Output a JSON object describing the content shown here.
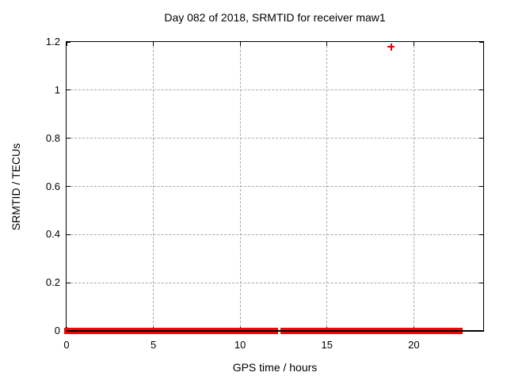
{
  "chart_data": {
    "type": "scatter",
    "title": "Day 082 of 2018, SRMTID for receiver maw1",
    "xlabel": "GPS time / hours",
    "ylabel": "SRMTID / TECUs",
    "xlim": [
      0,
      24
    ],
    "ylim": [
      0,
      1.2
    ],
    "xticks": {
      "values": [
        0,
        5,
        10,
        15,
        20
      ],
      "labels": [
        "0",
        "5",
        "10",
        "15",
        "20"
      ]
    },
    "yticks": {
      "values": [
        0,
        0.2,
        0.4,
        0.6,
        0.8,
        1,
        1.2
      ],
      "labels": [
        "0",
        "0.2",
        "0.4",
        "0.6",
        "0.8",
        "1",
        "1.2"
      ]
    },
    "grid": true,
    "legend": "none",
    "series": [
      {
        "name": "SRMTID",
        "marker": "plus",
        "color": "#ff0000",
        "baseline_segments": [
          {
            "x_start": 0,
            "x_end": 12.2,
            "y": 0
          },
          {
            "x_start": 12.3,
            "x_end": 22.8,
            "y": 0
          }
        ],
        "outlier_points": [
          {
            "x": 18.7,
            "y": 1.18
          }
        ]
      }
    ],
    "colors": {
      "marker": "#e60000",
      "band": "#ff0000",
      "grid": "#aaaaaa",
      "axis": "#000000",
      "background": "#ffffff",
      "text": "#000000"
    }
  }
}
